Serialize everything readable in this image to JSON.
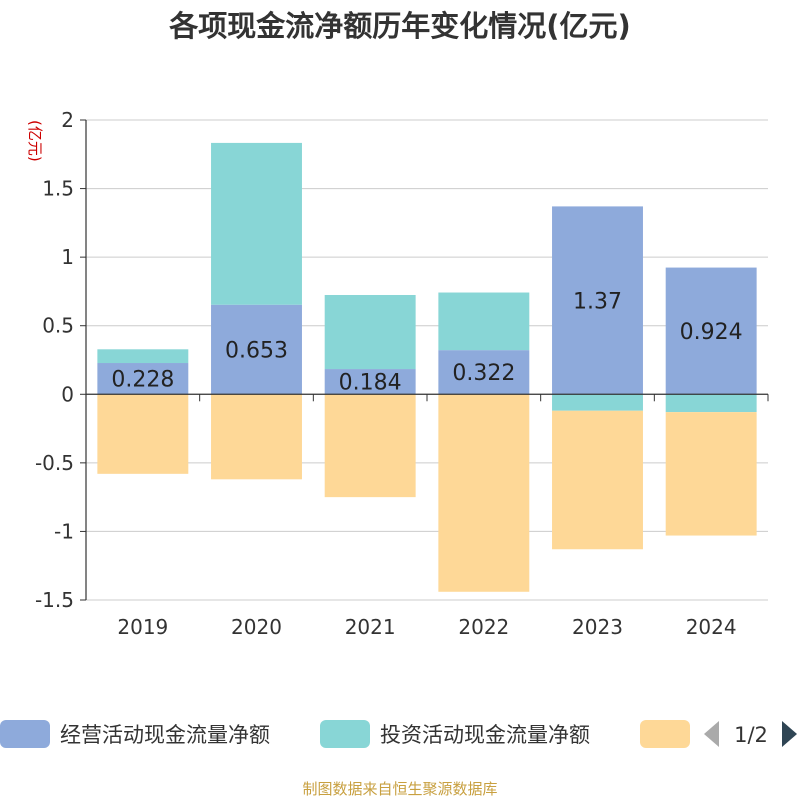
{
  "chart_data": {
    "type": "bar",
    "stacked": true,
    "title": "各项现金流净额历年变化情况(亿元)",
    "unit_label": "(亿元)",
    "categories": [
      "2019",
      "2020",
      "2021",
      "2022",
      "2023",
      "2024"
    ],
    "series": [
      {
        "name": "经营活动现金流量净额",
        "color": "#8eaadb",
        "values": [
          0.228,
          0.653,
          0.184,
          0.322,
          1.37,
          0.924
        ],
        "show_labels": true
      },
      {
        "name": "投资活动现金流量净额",
        "color": "#88d6d6",
        "values": [
          0.1,
          1.18,
          0.54,
          0.42,
          -0.12,
          -0.13
        ],
        "show_labels": false
      },
      {
        "name": "",
        "color": "#fed897",
        "values": [
          -0.58,
          -0.62,
          -0.75,
          -1.44,
          -1.01,
          -0.9
        ],
        "show_labels": false
      }
    ],
    "ylim": [
      -1.5,
      2
    ],
    "yticks": [
      2,
      1.5,
      1,
      0.5,
      0,
      -0.5,
      -1,
      -1.5
    ],
    "ytick_labels": [
      "2",
      "1.5",
      "1",
      "0.5",
      "0",
      "-0.5",
      "-1",
      "-1.5"
    ],
    "grid": true,
    "legend": {
      "position": "bottom",
      "page": "1/2"
    },
    "source": "制图数据来自恒生聚源数据库"
  }
}
